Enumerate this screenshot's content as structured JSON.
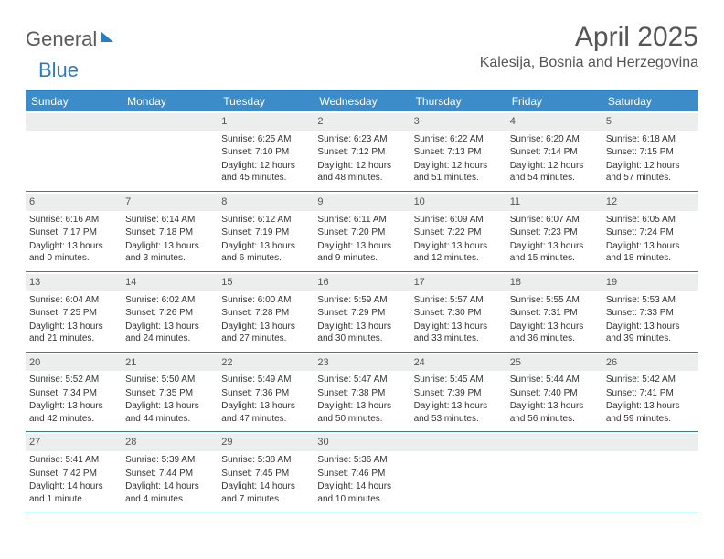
{
  "logo": {
    "part1": "General",
    "part2": "Blue"
  },
  "title": "April 2025",
  "location": "Kalesija, Bosnia and Herzegovina",
  "dayHeaders": [
    "Sunday",
    "Monday",
    "Tuesday",
    "Wednesday",
    "Thursday",
    "Friday",
    "Saturday"
  ],
  "headerColor": "#3b8cc9",
  "borderColor": "#2b7cc0",
  "dayNumBg": "#eceded",
  "weeks": [
    [
      {
        "num": "",
        "lines": []
      },
      {
        "num": "",
        "lines": []
      },
      {
        "num": "1",
        "lines": [
          "Sunrise: 6:25 AM",
          "Sunset: 7:10 PM",
          "Daylight: 12 hours and 45 minutes."
        ]
      },
      {
        "num": "2",
        "lines": [
          "Sunrise: 6:23 AM",
          "Sunset: 7:12 PM",
          "Daylight: 12 hours and 48 minutes."
        ]
      },
      {
        "num": "3",
        "lines": [
          "Sunrise: 6:22 AM",
          "Sunset: 7:13 PM",
          "Daylight: 12 hours and 51 minutes."
        ]
      },
      {
        "num": "4",
        "lines": [
          "Sunrise: 6:20 AM",
          "Sunset: 7:14 PM",
          "Daylight: 12 hours and 54 minutes."
        ]
      },
      {
        "num": "5",
        "lines": [
          "Sunrise: 6:18 AM",
          "Sunset: 7:15 PM",
          "Daylight: 12 hours and 57 minutes."
        ]
      }
    ],
    [
      {
        "num": "6",
        "lines": [
          "Sunrise: 6:16 AM",
          "Sunset: 7:17 PM",
          "Daylight: 13 hours and 0 minutes."
        ]
      },
      {
        "num": "7",
        "lines": [
          "Sunrise: 6:14 AM",
          "Sunset: 7:18 PM",
          "Daylight: 13 hours and 3 minutes."
        ]
      },
      {
        "num": "8",
        "lines": [
          "Sunrise: 6:12 AM",
          "Sunset: 7:19 PM",
          "Daylight: 13 hours and 6 minutes."
        ]
      },
      {
        "num": "9",
        "lines": [
          "Sunrise: 6:11 AM",
          "Sunset: 7:20 PM",
          "Daylight: 13 hours and 9 minutes."
        ]
      },
      {
        "num": "10",
        "lines": [
          "Sunrise: 6:09 AM",
          "Sunset: 7:22 PM",
          "Daylight: 13 hours and 12 minutes."
        ]
      },
      {
        "num": "11",
        "lines": [
          "Sunrise: 6:07 AM",
          "Sunset: 7:23 PM",
          "Daylight: 13 hours and 15 minutes."
        ]
      },
      {
        "num": "12",
        "lines": [
          "Sunrise: 6:05 AM",
          "Sunset: 7:24 PM",
          "Daylight: 13 hours and 18 minutes."
        ]
      }
    ],
    [
      {
        "num": "13",
        "lines": [
          "Sunrise: 6:04 AM",
          "Sunset: 7:25 PM",
          "Daylight: 13 hours and 21 minutes."
        ]
      },
      {
        "num": "14",
        "lines": [
          "Sunrise: 6:02 AM",
          "Sunset: 7:26 PM",
          "Daylight: 13 hours and 24 minutes."
        ]
      },
      {
        "num": "15",
        "lines": [
          "Sunrise: 6:00 AM",
          "Sunset: 7:28 PM",
          "Daylight: 13 hours and 27 minutes."
        ]
      },
      {
        "num": "16",
        "lines": [
          "Sunrise: 5:59 AM",
          "Sunset: 7:29 PM",
          "Daylight: 13 hours and 30 minutes."
        ]
      },
      {
        "num": "17",
        "lines": [
          "Sunrise: 5:57 AM",
          "Sunset: 7:30 PM",
          "Daylight: 13 hours and 33 minutes."
        ]
      },
      {
        "num": "18",
        "lines": [
          "Sunrise: 5:55 AM",
          "Sunset: 7:31 PM",
          "Daylight: 13 hours and 36 minutes."
        ]
      },
      {
        "num": "19",
        "lines": [
          "Sunrise: 5:53 AM",
          "Sunset: 7:33 PM",
          "Daylight: 13 hours and 39 minutes."
        ]
      }
    ],
    [
      {
        "num": "20",
        "lines": [
          "Sunrise: 5:52 AM",
          "Sunset: 7:34 PM",
          "Daylight: 13 hours and 42 minutes."
        ]
      },
      {
        "num": "21",
        "lines": [
          "Sunrise: 5:50 AM",
          "Sunset: 7:35 PM",
          "Daylight: 13 hours and 44 minutes."
        ]
      },
      {
        "num": "22",
        "lines": [
          "Sunrise: 5:49 AM",
          "Sunset: 7:36 PM",
          "Daylight: 13 hours and 47 minutes."
        ]
      },
      {
        "num": "23",
        "lines": [
          "Sunrise: 5:47 AM",
          "Sunset: 7:38 PM",
          "Daylight: 13 hours and 50 minutes."
        ]
      },
      {
        "num": "24",
        "lines": [
          "Sunrise: 5:45 AM",
          "Sunset: 7:39 PM",
          "Daylight: 13 hours and 53 minutes."
        ]
      },
      {
        "num": "25",
        "lines": [
          "Sunrise: 5:44 AM",
          "Sunset: 7:40 PM",
          "Daylight: 13 hours and 56 minutes."
        ]
      },
      {
        "num": "26",
        "lines": [
          "Sunrise: 5:42 AM",
          "Sunset: 7:41 PM",
          "Daylight: 13 hours and 59 minutes."
        ]
      }
    ],
    [
      {
        "num": "27",
        "lines": [
          "Sunrise: 5:41 AM",
          "Sunset: 7:42 PM",
          "Daylight: 14 hours and 1 minute."
        ]
      },
      {
        "num": "28",
        "lines": [
          "Sunrise: 5:39 AM",
          "Sunset: 7:44 PM",
          "Daylight: 14 hours and 4 minutes."
        ]
      },
      {
        "num": "29",
        "lines": [
          "Sunrise: 5:38 AM",
          "Sunset: 7:45 PM",
          "Daylight: 14 hours and 7 minutes."
        ]
      },
      {
        "num": "30",
        "lines": [
          "Sunrise: 5:36 AM",
          "Sunset: 7:46 PM",
          "Daylight: 14 hours and 10 minutes."
        ]
      },
      {
        "num": "",
        "lines": []
      },
      {
        "num": "",
        "lines": []
      },
      {
        "num": "",
        "lines": []
      }
    ]
  ]
}
